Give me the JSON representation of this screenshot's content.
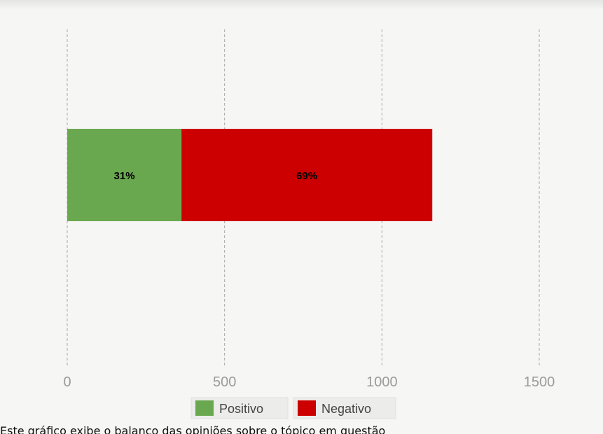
{
  "chart_data": {
    "type": "bar",
    "orientation": "horizontal",
    "stacked": true,
    "title": "",
    "xlabel": "",
    "ylabel": "",
    "xlim": [
      0,
      1500
    ],
    "ticks": [
      0,
      500,
      1000,
      1500
    ],
    "tick_labels": [
      "0",
      "500",
      "1000",
      "1500"
    ],
    "grid": "vertical dashed",
    "legend_position": "bottom-center",
    "series": [
      {
        "name": "Positivo",
        "values": [
          363
        ],
        "label": "31%",
        "color": "#6aa84f"
      },
      {
        "name": "Negativo",
        "values": [
          797
        ],
        "label": "69%",
        "color": "#cc0000"
      }
    ]
  },
  "caption": "Este gráfico exibe o balanço das opiniões sobre o tópico em questão"
}
